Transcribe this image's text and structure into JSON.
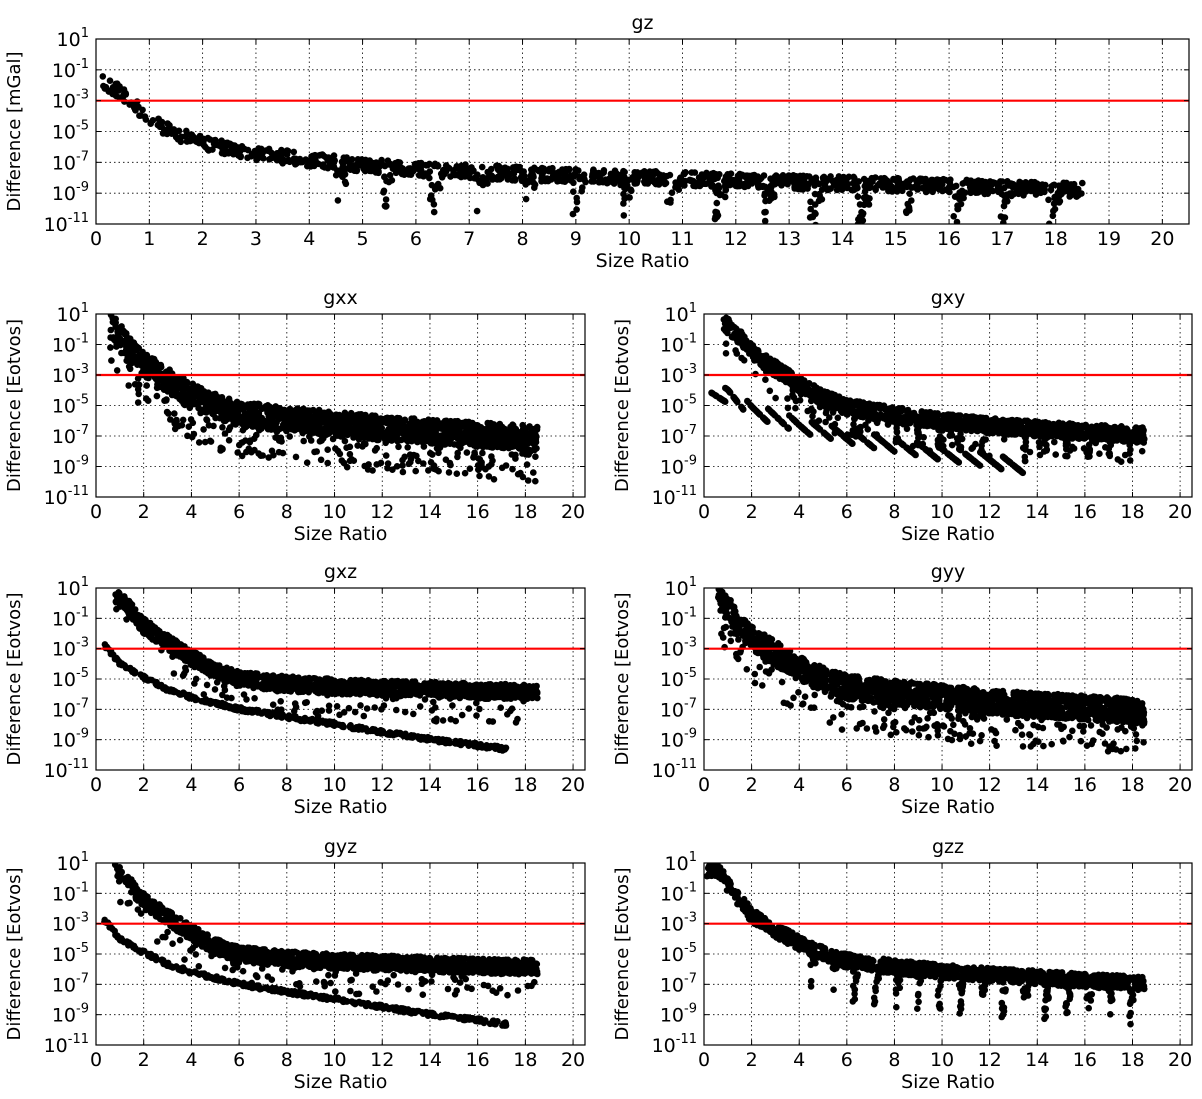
{
  "chart_data": [
    {
      "type": "scatter",
      "title": "gz",
      "xlabel": "Size Ratio",
      "ylabel": "Difference [mGal]",
      "xlim": [
        0,
        20.5
      ],
      "ylim": [
        1e-11,
        10
      ],
      "yscale": "log",
      "xticks": [
        "0",
        "1",
        "2",
        "3",
        "4",
        "5",
        "6",
        "7",
        "8",
        "9",
        "10",
        "11",
        "12",
        "13",
        "14",
        "15",
        "16",
        "17",
        "18",
        "19",
        "20"
      ],
      "yticks": [
        {
          "base": "10",
          "exp": "-11"
        },
        {
          "base": "10",
          "exp": "-9"
        },
        {
          "base": "10",
          "exp": "-7"
        },
        {
          "base": "10",
          "exp": "-5"
        },
        {
          "base": "10",
          "exp": "-3"
        },
        {
          "base": "10",
          "exp": "-1"
        },
        {
          "base": "10",
          "exp": "1"
        }
      ],
      "threshold": 0.001,
      "grid": true,
      "series_color": "#000000",
      "threshold_color": "#ff0000",
      "pattern": "single",
      "x_max": 18.5,
      "envelope": [
        [
          0.1,
          0.05
        ],
        [
          0.5,
          0.008
        ],
        [
          1,
          0.00015
        ],
        [
          1.5,
          2e-05
        ],
        [
          2,
          5e-06
        ],
        [
          3,
          1e-06
        ],
        [
          4,
          4e-07
        ],
        [
          5,
          1.8e-07
        ],
        [
          6,
          1e-07
        ],
        [
          8,
          5e-08
        ],
        [
          10,
          3e-08
        ],
        [
          12,
          1.8e-08
        ],
        [
          14,
          1.2e-08
        ],
        [
          16,
          8e-09
        ],
        [
          18,
          5e-09
        ],
        [
          18.5,
          4.5e-09
        ]
      ]
    },
    {
      "type": "scatter",
      "title": "gxx",
      "xlabel": "Size Ratio",
      "ylabel": "Difference [Eotvos]",
      "xlim": [
        0,
        20.5
      ],
      "ylim": [
        1e-11,
        10
      ],
      "yscale": "log",
      "xticks": [
        "0",
        "2",
        "4",
        "6",
        "8",
        "10",
        "12",
        "14",
        "16",
        "18",
        "20"
      ],
      "yticks": [
        {
          "base": "10",
          "exp": "-11"
        },
        {
          "base": "10",
          "exp": "-9"
        },
        {
          "base": "10",
          "exp": "-7"
        },
        {
          "base": "10",
          "exp": "-5"
        },
        {
          "base": "10",
          "exp": "-3"
        },
        {
          "base": "10",
          "exp": "-1"
        },
        {
          "base": "10",
          "exp": "1"
        }
      ],
      "threshold": 0.001,
      "grid": true,
      "series_color": "#000000",
      "threshold_color": "#ff0000",
      "pattern": "dense",
      "x_max": 18.5,
      "envelope": [
        [
          0.6,
          10
        ],
        [
          1,
          3
        ],
        [
          1.5,
          0.2
        ],
        [
          2,
          0.03
        ],
        [
          3,
          0.003
        ],
        [
          4,
          0.0003
        ],
        [
          5,
          6e-05
        ],
        [
          6,
          1.8e-05
        ],
        [
          8,
          8e-06
        ],
        [
          10,
          4e-06
        ],
        [
          12,
          2e-06
        ],
        [
          14,
          1.2e-06
        ],
        [
          16,
          8e-07
        ],
        [
          18,
          5e-07
        ],
        [
          18.5,
          4e-07
        ]
      ]
    },
    {
      "type": "scatter",
      "title": "gxy",
      "xlabel": "Size Ratio",
      "ylabel": "Difference [Eotvos]",
      "xlim": [
        0,
        20.5
      ],
      "ylim": [
        1e-11,
        10
      ],
      "yscale": "log",
      "xticks": [
        "0",
        "2",
        "4",
        "6",
        "8",
        "10",
        "12",
        "14",
        "16",
        "18",
        "20"
      ],
      "yticks": [
        {
          "base": "10",
          "exp": "-11"
        },
        {
          "base": "10",
          "exp": "-9"
        },
        {
          "base": "10",
          "exp": "-7"
        },
        {
          "base": "10",
          "exp": "-5"
        },
        {
          "base": "10",
          "exp": "-3"
        },
        {
          "base": "10",
          "exp": "-1"
        },
        {
          "base": "10",
          "exp": "1"
        }
      ],
      "threshold": 0.001,
      "grid": true,
      "series_color": "#000000",
      "threshold_color": "#ff0000",
      "pattern": "xy",
      "x_max": 18.5,
      "envelope": [
        [
          0.8,
          10
        ],
        [
          1.5,
          1
        ],
        [
          2,
          0.1
        ],
        [
          3,
          0.008
        ],
        [
          4,
          0.0008
        ],
        [
          5,
          0.0001
        ],
        [
          6,
          2.5e-05
        ],
        [
          8,
          8e-06
        ],
        [
          10,
          3e-06
        ],
        [
          12,
          1.5e-06
        ],
        [
          14,
          9e-07
        ],
        [
          16,
          6e-07
        ],
        [
          18,
          4e-07
        ],
        [
          18.5,
          3.5e-07
        ]
      ],
      "lower_band": [
        [
          1,
          0.0001
        ],
        [
          2,
          1e-05
        ],
        [
          4,
          1e-06
        ],
        [
          6,
          2e-07
        ],
        [
          8,
          5e-08
        ],
        [
          10,
          1.5e-08
        ],
        [
          12,
          5e-09
        ],
        [
          14,
          1.5e-09
        ],
        [
          16,
          5e-10
        ],
        [
          18,
          2e-10
        ]
      ],
      "lower_x_max": 13.5
    },
    {
      "type": "scatter",
      "title": "gxz",
      "xlabel": "Size Ratio",
      "ylabel": "Difference [Eotvos]",
      "xlim": [
        0,
        20.5
      ],
      "ylim": [
        1e-11,
        10
      ],
      "yscale": "log",
      "xticks": [
        "0",
        "2",
        "4",
        "6",
        "8",
        "10",
        "12",
        "14",
        "16",
        "18",
        "20"
      ],
      "yticks": [
        {
          "base": "10",
          "exp": "-11"
        },
        {
          "base": "10",
          "exp": "-9"
        },
        {
          "base": "10",
          "exp": "-7"
        },
        {
          "base": "10",
          "exp": "-5"
        },
        {
          "base": "10",
          "exp": "-3"
        },
        {
          "base": "10",
          "exp": "-1"
        },
        {
          "base": "10",
          "exp": "1"
        }
      ],
      "threshold": 0.001,
      "grid": true,
      "series_color": "#000000",
      "threshold_color": "#ff0000",
      "pattern": "xz",
      "x_max": 18.5,
      "envelope": [
        [
          0.8,
          10
        ],
        [
          1.5,
          1
        ],
        [
          2,
          0.1
        ],
        [
          3,
          0.008
        ],
        [
          4,
          0.0008
        ],
        [
          5,
          0.0001
        ],
        [
          6,
          3e-05
        ],
        [
          8,
          1.5e-05
        ],
        [
          10,
          1e-05
        ],
        [
          12,
          8e-06
        ],
        [
          14,
          6.5e-06
        ],
        [
          16,
          5e-06
        ],
        [
          18,
          4.5e-06
        ],
        [
          18.5,
          4e-06
        ]
      ],
      "lower_band": [
        [
          0.3,
          0.002
        ],
        [
          1,
          0.0001
        ],
        [
          2,
          1.2e-05
        ],
        [
          3,
          2e-06
        ],
        [
          4,
          6e-07
        ],
        [
          6,
          1e-07
        ],
        [
          8,
          3e-08
        ],
        [
          10,
          1e-08
        ],
        [
          12,
          3e-09
        ],
        [
          14,
          1e-09
        ],
        [
          16,
          4e-10
        ],
        [
          18,
          1.5e-10
        ]
      ],
      "lower_x_max": 17.2
    },
    {
      "type": "scatter",
      "title": "gyy",
      "xlabel": "Size Ratio",
      "ylabel": "Difference [Eotvos]",
      "xlim": [
        0,
        20.5
      ],
      "ylim": [
        1e-11,
        10
      ],
      "yscale": "log",
      "xticks": [
        "0",
        "2",
        "4",
        "6",
        "8",
        "10",
        "12",
        "14",
        "16",
        "18",
        "20"
      ],
      "yticks": [
        {
          "base": "10",
          "exp": "-11"
        },
        {
          "base": "10",
          "exp": "-9"
        },
        {
          "base": "10",
          "exp": "-7"
        },
        {
          "base": "10",
          "exp": "-5"
        },
        {
          "base": "10",
          "exp": "-3"
        },
        {
          "base": "10",
          "exp": "-1"
        },
        {
          "base": "10",
          "exp": "1"
        }
      ],
      "threshold": 0.001,
      "grid": true,
      "series_color": "#000000",
      "threshold_color": "#ff0000",
      "pattern": "dense",
      "x_max": 18.5,
      "envelope": [
        [
          0.6,
          10
        ],
        [
          1,
          3
        ],
        [
          1.5,
          0.2
        ],
        [
          2,
          0.03
        ],
        [
          3,
          0.003
        ],
        [
          4,
          0.0003
        ],
        [
          5,
          6e-05
        ],
        [
          6,
          1.8e-05
        ],
        [
          8,
          8e-06
        ],
        [
          10,
          4e-06
        ],
        [
          12,
          2e-06
        ],
        [
          14,
          1.2e-06
        ],
        [
          16,
          8e-07
        ],
        [
          18,
          5e-07
        ],
        [
          18.5,
          4e-07
        ]
      ]
    },
    {
      "type": "scatter",
      "title": "gyz",
      "xlabel": "Size Ratio",
      "ylabel": "Difference [Eotvos]",
      "xlim": [
        0,
        20.5
      ],
      "ylim": [
        1e-11,
        10
      ],
      "yscale": "log",
      "xticks": [
        "0",
        "2",
        "4",
        "6",
        "8",
        "10",
        "12",
        "14",
        "16",
        "18",
        "20"
      ],
      "yticks": [
        {
          "base": "10",
          "exp": "-11"
        },
        {
          "base": "10",
          "exp": "-9"
        },
        {
          "base": "10",
          "exp": "-7"
        },
        {
          "base": "10",
          "exp": "-5"
        },
        {
          "base": "10",
          "exp": "-3"
        },
        {
          "base": "10",
          "exp": "-1"
        },
        {
          "base": "10",
          "exp": "1"
        }
      ],
      "threshold": 0.001,
      "grid": true,
      "series_color": "#000000",
      "threshold_color": "#ff0000",
      "pattern": "xz",
      "x_max": 18.5,
      "envelope": [
        [
          0.8,
          10
        ],
        [
          1.5,
          1
        ],
        [
          2,
          0.1
        ],
        [
          3,
          0.008
        ],
        [
          4,
          0.0008
        ],
        [
          5,
          0.0001
        ],
        [
          6,
          3e-05
        ],
        [
          8,
          1.5e-05
        ],
        [
          10,
          1e-05
        ],
        [
          12,
          8e-06
        ],
        [
          14,
          6.5e-06
        ],
        [
          16,
          5e-06
        ],
        [
          18,
          4.5e-06
        ],
        [
          18.5,
          4e-06
        ]
      ],
      "lower_band": [
        [
          0.3,
          0.002
        ],
        [
          1,
          0.0001
        ],
        [
          2,
          1.2e-05
        ],
        [
          3,
          2e-06
        ],
        [
          4,
          6e-07
        ],
        [
          6,
          1e-07
        ],
        [
          8,
          3e-08
        ],
        [
          10,
          1e-08
        ],
        [
          12,
          3e-09
        ],
        [
          14,
          1e-09
        ],
        [
          16,
          4e-10
        ],
        [
          18,
          1.5e-10
        ]
      ],
      "lower_x_max": 17.2
    },
    {
      "type": "scatter",
      "title": "gzz",
      "xlabel": "Size Ratio",
      "ylabel": "Difference [Eotvos]",
      "xlim": [
        0,
        20.5
      ],
      "ylim": [
        1e-11,
        10
      ],
      "yscale": "log",
      "xticks": [
        "0",
        "2",
        "4",
        "6",
        "8",
        "10",
        "12",
        "14",
        "16",
        "18",
        "20"
      ],
      "yticks": [
        {
          "base": "10",
          "exp": "-11"
        },
        {
          "base": "10",
          "exp": "-9"
        },
        {
          "base": "10",
          "exp": "-7"
        },
        {
          "base": "10",
          "exp": "-5"
        },
        {
          "base": "10",
          "exp": "-3"
        },
        {
          "base": "10",
          "exp": "-1"
        },
        {
          "base": "10",
          "exp": "1"
        }
      ],
      "threshold": 0.001,
      "grid": true,
      "series_color": "#000000",
      "threshold_color": "#ff0000",
      "pattern": "single",
      "x_max": 18.5,
      "envelope": [
        [
          0.6,
          10
        ],
        [
          1,
          1
        ],
        [
          1.5,
          0.1
        ],
        [
          2,
          0.01
        ],
        [
          3,
          0.001
        ],
        [
          4,
          0.00015
        ],
        [
          5,
          3e-05
        ],
        [
          6,
          1e-05
        ],
        [
          8,
          4e-06
        ],
        [
          10,
          2e-06
        ],
        [
          12,
          1.2e-06
        ],
        [
          14,
          8e-07
        ],
        [
          16,
          5e-07
        ],
        [
          18,
          3.5e-07
        ],
        [
          18.5,
          3e-07
        ]
      ]
    }
  ]
}
